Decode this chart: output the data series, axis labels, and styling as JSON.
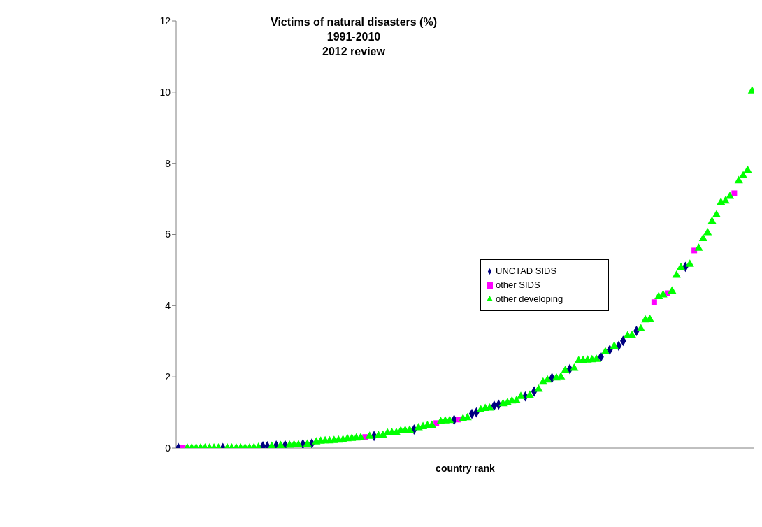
{
  "chart_data": {
    "type": "scatter",
    "title": "Victims of natural disasters (%)\n1991-2010\n2012 review",
    "xlabel": "country rank",
    "categories": [
      null,
      null,
      null,
      null,
      null,
      null,
      null,
      null,
      null,
      null,
      null,
      null,
      null,
      null,
      null,
      null,
      null,
      null,
      null,
      null,
      null,
      null,
      null,
      null,
      null,
      null,
      null,
      null,
      null,
      null,
      null,
      null,
      null,
      null,
      null,
      null,
      null,
      null,
      null,
      null,
      null,
      null,
      null,
      null,
      null,
      null,
      null,
      null,
      null,
      null,
      null,
      null,
      null,
      null,
      null,
      null,
      null,
      null,
      null,
      null,
      null,
      null,
      null,
      null,
      null,
      null,
      null,
      null,
      null,
      null,
      null,
      null,
      null,
      null,
      null,
      null,
      null,
      null,
      null,
      null,
      null,
      null,
      null,
      null,
      null,
      null,
      null,
      null,
      null,
      null,
      null,
      null,
      null,
      null,
      null,
      null,
      null,
      null,
      null,
      null,
      null,
      null,
      null,
      null,
      null,
      null,
      null,
      null,
      null,
      null,
      null,
      null,
      null,
      null,
      null,
      null,
      null,
      null,
      null,
      null,
      null,
      null,
      null,
      null,
      null,
      null,
      null,
      null,
      null,
      null
    ],
    "series": [
      {
        "name": "UNCTAD SIDS",
        "color": "#000080",
        "marker": "diamond",
        "values": [
          0,
          null,
          null,
          null,
          null,
          null,
          null,
          null,
          null,
          null,
          0,
          null,
          null,
          null,
          null,
          null,
          null,
          null,
          null,
          0.05,
          0.05,
          null,
          0.07,
          null,
          0.08,
          null,
          null,
          null,
          0.11,
          null,
          0.13,
          null,
          null,
          null,
          null,
          null,
          null,
          null,
          null,
          null,
          null,
          null,
          null,
          null,
          0.34,
          null,
          null,
          null,
          null,
          null,
          null,
          null,
          null,
          0.52,
          null,
          null,
          null,
          null,
          null,
          null,
          null,
          null,
          0.79,
          null,
          null,
          null,
          0.96,
          1.0,
          null,
          null,
          null,
          1.19,
          1.22,
          null,
          null,
          null,
          null,
          null,
          1.45,
          null,
          1.59,
          null,
          null,
          null,
          1.97,
          null,
          null,
          null,
          2.22,
          null,
          null,
          null,
          null,
          null,
          null,
          2.56,
          null,
          2.76,
          null,
          2.87,
          3.01,
          null,
          null,
          3.29,
          null,
          null,
          null,
          null,
          null,
          null,
          null,
          null,
          null,
          null,
          5.09,
          null,
          null,
          null,
          null,
          null,
          null,
          null,
          null,
          null,
          null,
          null,
          null,
          null,
          null,
          null
        ]
      },
      {
        "name": "other SIDS",
        "color": "#ff00ff",
        "marker": "square",
        "values": [
          null,
          0,
          null,
          null,
          null,
          null,
          null,
          null,
          null,
          null,
          null,
          null,
          null,
          null,
          null,
          null,
          null,
          null,
          null,
          null,
          null,
          null,
          null,
          null,
          null,
          null,
          null,
          null,
          null,
          null,
          null,
          null,
          null,
          null,
          null,
          null,
          null,
          null,
          null,
          null,
          null,
          null,
          0.31,
          null,
          null,
          null,
          null,
          null,
          null,
          null,
          null,
          null,
          null,
          null,
          null,
          null,
          null,
          null,
          0.7,
          null,
          null,
          null,
          null,
          0.8,
          null,
          null,
          null,
          null,
          null,
          null,
          null,
          null,
          null,
          null,
          null,
          null,
          null,
          null,
          null,
          null,
          null,
          null,
          null,
          null,
          null,
          null,
          null,
          null,
          null,
          null,
          null,
          null,
          null,
          null,
          null,
          null,
          null,
          null,
          null,
          null,
          null,
          null,
          null,
          null,
          null,
          null,
          null,
          4.1,
          null,
          null,
          4.35,
          null,
          null,
          null,
          null,
          null,
          5.55,
          null,
          null,
          null,
          null,
          null,
          null,
          null,
          null,
          7.16,
          null,
          null,
          null,
          null
        ]
      },
      {
        "name": "other developing",
        "color": "#00ff00",
        "marker": "triangle",
        "values": [
          null,
          null,
          0,
          0,
          0,
          0,
          0,
          0,
          0,
          0,
          null,
          0,
          0,
          0,
          0,
          0,
          0,
          0.01,
          0.02,
          null,
          null,
          0.05,
          null,
          0.07,
          null,
          0.08,
          0.09,
          0.09,
          null,
          0.11,
          null,
          0.17,
          0.19,
          0.2,
          0.2,
          0.21,
          0.22,
          0.23,
          0.26,
          0.27,
          0.28,
          0.29,
          null,
          0.33,
          null,
          0.35,
          0.36,
          0.42,
          0.43,
          0.43,
          0.48,
          0.49,
          0.5,
          null,
          0.57,
          0.6,
          0.63,
          0.64,
          null,
          0.74,
          0.76,
          0.77,
          null,
          null,
          0.82,
          0.85,
          null,
          null,
          1.07,
          1.11,
          1.12,
          null,
          null,
          1.24,
          1.27,
          1.32,
          1.33,
          1.45,
          null,
          1.48,
          null,
          1.65,
          1.85,
          1.91,
          null,
          1.97,
          2.0,
          2.18,
          null,
          2.24,
          2.45,
          2.46,
          2.47,
          2.48,
          2.49,
          null,
          2.7,
          null,
          2.86,
          null,
          null,
          3.15,
          3.16,
          null,
          3.35,
          3.6,
          3.62,
          null,
          4.25,
          4.3,
          null,
          4.41,
          4.85,
          5.07,
          null,
          5.16,
          null,
          5.61,
          5.88,
          6.05,
          6.37,
          6.55,
          6.9,
          6.94,
          7.07,
          null,
          7.51,
          7.65,
          7.8,
          10.03
        ]
      }
    ],
    "ylim": [
      0,
      12
    ],
    "yticks": [
      0,
      2,
      4,
      6,
      8,
      10,
      12
    ],
    "legend": "right"
  }
}
